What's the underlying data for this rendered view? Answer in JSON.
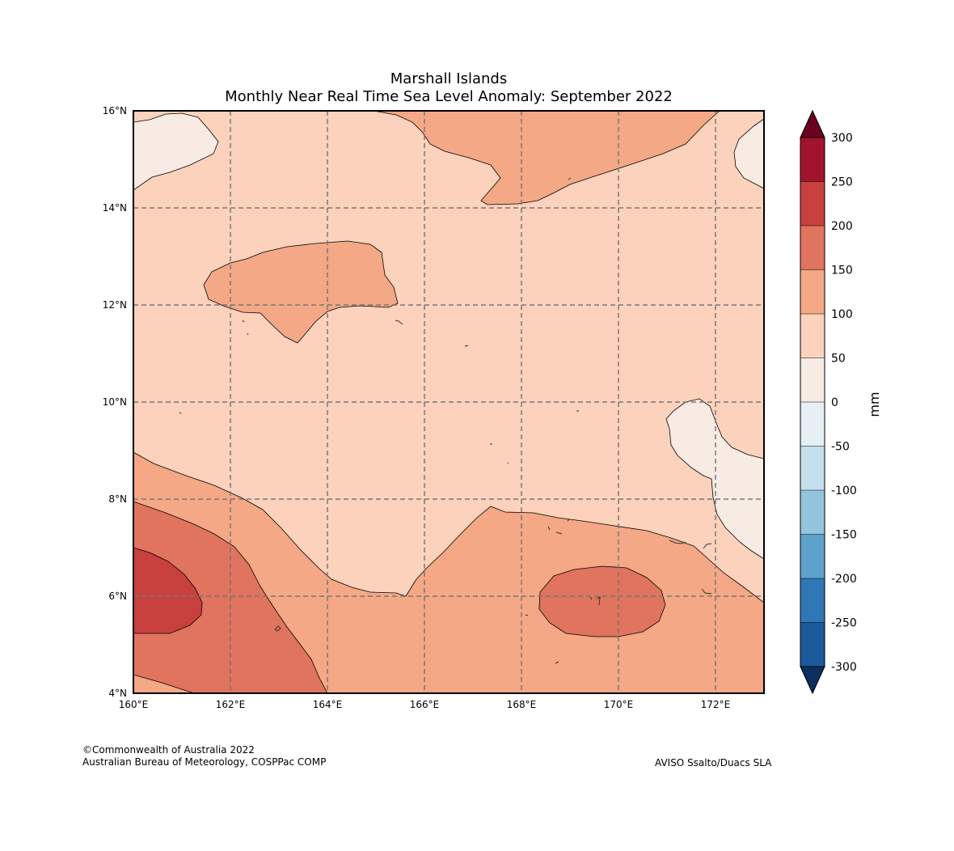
{
  "title": {
    "line1": "Marshall Islands",
    "line2": "Monthly Near Real Time Sea Level Anomaly: September 2022"
  },
  "axes": {
    "x_ticks": [
      "160°E",
      "162°E",
      "164°E",
      "166°E",
      "168°E",
      "170°E",
      "172°E"
    ],
    "y_ticks": [
      "16°N",
      "14°N",
      "12°N",
      "10°N",
      "8°N",
      "6°N",
      "4°N"
    ]
  },
  "colorbar": {
    "label": "mm",
    "tick_labels": [
      "300",
      "250",
      "200",
      "150",
      "100",
      "50",
      "0",
      "-50",
      "-100",
      "-150",
      "-200",
      "-250",
      "-300"
    ],
    "bins": [
      {
        "range": "250 to 300",
        "color": "#a2142d"
      },
      {
        "range": "200 to 250",
        "color": "#c8403d"
      },
      {
        "range": "150 to 200",
        "color": "#e0745e"
      },
      {
        "range": "100 to 150",
        "color": "#f4a886"
      },
      {
        "range": "50 to 100",
        "color": "#fcd2bd"
      },
      {
        "range": "0 to 50",
        "color": "#f8ebe4"
      },
      {
        "range": "-50 to 0",
        "color": "#e6eff4"
      },
      {
        "range": "-100 to -50",
        "color": "#c6dfec"
      },
      {
        "range": "-150 to -100",
        "color": "#93c5df"
      },
      {
        "range": "-200 to -150",
        "color": "#5da2cc"
      },
      {
        "range": "-250 to -200",
        "color": "#3078b5"
      },
      {
        "range": "-300 to -250",
        "color": "#1a5a9a"
      }
    ],
    "over_color": "#6a0320",
    "under_color": "#0a2f60"
  },
  "footer": {
    "copyright": "©Commonwealth of Australia 2022",
    "agency": "Australian Bureau of Meteorology, COSPPac COMP",
    "source": "AVISO Ssalto/Duacs SLA"
  }
}
